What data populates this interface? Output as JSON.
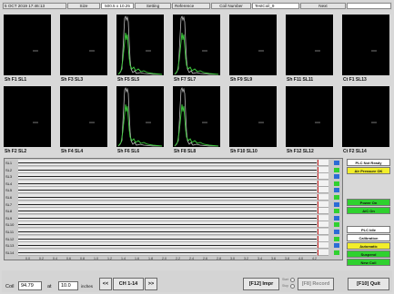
{
  "header": {
    "datetime": "5 OCT 2019 17:46:13",
    "size_label": "Size",
    "size_value": "500.5 x 10.25",
    "setting_label": "Setting",
    "reference_label": "Reference",
    "coil_number_label": "Coil Number",
    "coil_number_value": "TestCoil_9",
    "next_label": "Next"
  },
  "thumbnails_row1": [
    {
      "label": "Sh F1  SL1",
      "trace": "none"
    },
    {
      "label": "Sh F3  SL3",
      "trace": "none"
    },
    {
      "label": "Sh F5  SL5",
      "trace": "peak"
    },
    {
      "label": "Sh F7  SL7",
      "trace": "peak"
    },
    {
      "label": "Sh F9  SL9",
      "trace": "none"
    },
    {
      "label": "Sh F11 SL11",
      "trace": "none"
    },
    {
      "label": "Ct F1  SL13",
      "trace": "none"
    }
  ],
  "thumbnails_row2": [
    {
      "label": "Sh F2  SL2",
      "trace": "none"
    },
    {
      "label": "Sh F4  SL4",
      "trace": "none"
    },
    {
      "label": "Sh F6  SL6",
      "trace": "peak"
    },
    {
      "label": "Sh F8  SL8",
      "trace": "peak"
    },
    {
      "label": "Sh F10 SL10",
      "trace": "none"
    },
    {
      "label": "Sh F12 SL12",
      "trace": "none"
    },
    {
      "label": "Ct F2  SL14",
      "trace": "none"
    }
  ],
  "strips": [
    "SL1",
    "SL2",
    "SL3",
    "SL4",
    "SL5",
    "SL6",
    "SL7",
    "SL8",
    "SL9",
    "SL10",
    "SL11",
    "SL12",
    "SL13",
    "SL14"
  ],
  "x_ticks": [
    "0.0",
    "0.2",
    "0.4",
    "0.6",
    "0.8",
    "1.0",
    "1.2",
    "1.4",
    "1.6",
    "1.8",
    "2.0",
    "2.2",
    "2.4",
    "2.6",
    "2.8",
    "3.0",
    "3.2",
    "3.4",
    "3.6",
    "3.8",
    "4.0",
    "4.2"
  ],
  "status": {
    "plc_not_ready": {
      "label": "PLC Not Ready",
      "color": "#ffffff"
    },
    "air_pressure_ok": {
      "label": "Air Pressure OK",
      "color": "#f2ee2a"
    },
    "power_on": {
      "label": "Power On",
      "color": "#2fd12f"
    },
    "a_c_on": {
      "label": "A/C On",
      "color": "#2fd12f"
    },
    "plc_idle": {
      "label": "PLC Idle",
      "color": "#ffffff"
    },
    "calibration": {
      "label": "Calibration",
      "color": "#ffffff"
    },
    "automatic": {
      "label": "Automatic",
      "color": "#f2ee2a"
    },
    "suspend": {
      "label": "Suspend",
      "color": "#2fd12f"
    },
    "new_coil": {
      "label": "New Coil",
      "color": "#2fd12f"
    }
  },
  "bottom": {
    "coil_label": "Coil",
    "coil_value": "94.79",
    "at_label": "at",
    "length_value": "10.0",
    "unit_label": "inches",
    "prev_button": "<<",
    "channel_label": "CH 1-14",
    "next_button": ">>",
    "impr_button": "[F12] Impr",
    "start_label": "Start",
    "stop_label": "Stop",
    "record_button": "[F8] Record",
    "quit_button": "[F10] Quit"
  }
}
